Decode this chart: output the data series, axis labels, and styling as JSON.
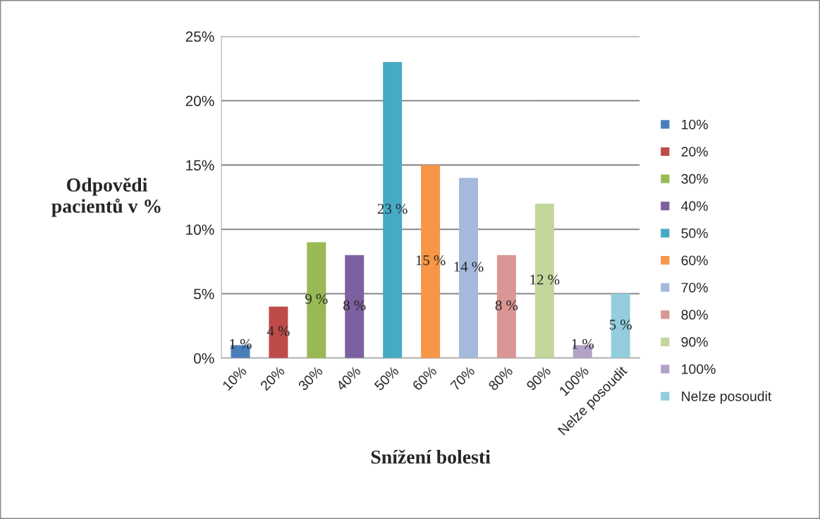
{
  "chart_data": {
    "type": "bar",
    "xlabel": "Snížení bolesti",
    "ylabel": "Odpovědi\npacientů v %",
    "categories": [
      "10%",
      "20%",
      "30%",
      "40%",
      "50%",
      "60%",
      "70%",
      "80%",
      "90%",
      "100%",
      "Nelze posoudit"
    ],
    "series": [
      {
        "name": "10%",
        "color": "#4a7ebb",
        "values": [
          1,
          null,
          null,
          null,
          null,
          null,
          null,
          null,
          null,
          null,
          null
        ],
        "value_labels": [
          "1 %",
          null,
          null,
          null,
          null,
          null,
          null,
          null,
          null,
          null,
          null
        ]
      },
      {
        "name": "20%",
        "color": "#be4b48",
        "values": [
          null,
          4,
          null,
          null,
          null,
          null,
          null,
          null,
          null,
          null,
          null
        ],
        "value_labels": [
          null,
          "4 %",
          null,
          null,
          null,
          null,
          null,
          null,
          null,
          null,
          null
        ]
      },
      {
        "name": "30%",
        "color": "#98b954",
        "values": [
          null,
          null,
          9,
          null,
          null,
          null,
          null,
          null,
          null,
          null,
          null
        ],
        "value_labels": [
          null,
          null,
          "9 %",
          null,
          null,
          null,
          null,
          null,
          null,
          null,
          null
        ]
      },
      {
        "name": "40%",
        "color": "#7d60a0",
        "values": [
          null,
          null,
          null,
          8,
          null,
          null,
          null,
          null,
          null,
          null,
          null
        ],
        "value_labels": [
          null,
          null,
          null,
          "8 %",
          null,
          null,
          null,
          null,
          null,
          null,
          null
        ]
      },
      {
        "name": "50%",
        "color": "#46aac5",
        "values": [
          null,
          null,
          null,
          null,
          23,
          null,
          null,
          null,
          null,
          null,
          null
        ],
        "value_labels": [
          null,
          null,
          null,
          null,
          "23 %",
          null,
          null,
          null,
          null,
          null,
          null
        ]
      },
      {
        "name": "60%",
        "color": "#f79646",
        "values": [
          null,
          null,
          null,
          null,
          null,
          15,
          null,
          null,
          null,
          null,
          null
        ],
        "value_labels": [
          null,
          null,
          null,
          null,
          null,
          "15 %",
          null,
          null,
          null,
          null,
          null
        ]
      },
      {
        "name": "70%",
        "color": "#a5b9dd",
        "values": [
          null,
          null,
          null,
          null,
          null,
          null,
          14,
          null,
          null,
          null,
          null
        ],
        "value_labels": [
          null,
          null,
          null,
          null,
          null,
          null,
          "14 %",
          null,
          null,
          null,
          null
        ]
      },
      {
        "name": "80%",
        "color": "#d99694",
        "values": [
          null,
          null,
          null,
          null,
          null,
          null,
          null,
          8,
          null,
          null,
          null
        ],
        "value_labels": [
          null,
          null,
          null,
          null,
          null,
          null,
          null,
          "8 %",
          null,
          null,
          null
        ]
      },
      {
        "name": "90%",
        "color": "#c3d69b",
        "values": [
          null,
          null,
          null,
          null,
          null,
          null,
          null,
          null,
          12,
          null,
          null
        ],
        "value_labels": [
          null,
          null,
          null,
          null,
          null,
          null,
          null,
          null,
          "12 %",
          null,
          null
        ]
      },
      {
        "name": "100%",
        "color": "#b3a2c7",
        "values": [
          null,
          null,
          null,
          null,
          null,
          null,
          null,
          null,
          null,
          1,
          null
        ],
        "value_labels": [
          null,
          null,
          null,
          null,
          null,
          null,
          null,
          null,
          null,
          "1 %",
          null
        ]
      },
      {
        "name": "Nelze posoudit",
        "color": "#93cddd",
        "values": [
          null,
          null,
          null,
          null,
          null,
          null,
          null,
          null,
          null,
          null,
          5
        ],
        "value_labels": [
          null,
          null,
          null,
          null,
          null,
          null,
          null,
          null,
          null,
          null,
          "5 %"
        ]
      }
    ],
    "ylim": [
      0,
      25
    ],
    "yticks": [
      {
        "value": 0,
        "label": "0%"
      },
      {
        "value": 5,
        "label": "5%"
      },
      {
        "value": 10,
        "label": "10%"
      },
      {
        "value": 15,
        "label": "15%"
      },
      {
        "value": 20,
        "label": "20%"
      },
      {
        "value": 25,
        "label": "25%"
      }
    ],
    "grid": "y",
    "legend": "right"
  }
}
